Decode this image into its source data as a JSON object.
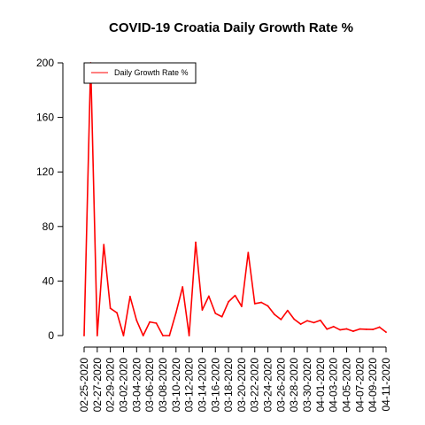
{
  "chart_data": {
    "type": "line",
    "title": "COVID-19 Croatia Daily Growth Rate %",
    "xlabel": "",
    "ylabel": "",
    "ylim": [
      0,
      200
    ],
    "yticks": [
      0,
      40,
      80,
      120,
      160,
      200
    ],
    "x": [
      "02-25-2020",
      "02-26-2020",
      "02-27-2020",
      "02-28-2020",
      "02-29-2020",
      "03-01-2020",
      "03-02-2020",
      "03-03-2020",
      "03-04-2020",
      "03-05-2020",
      "03-06-2020",
      "03-07-2020",
      "03-08-2020",
      "03-09-2020",
      "03-10-2020",
      "03-11-2020",
      "03-12-2020",
      "03-13-2020",
      "03-14-2020",
      "03-15-2020",
      "03-16-2020",
      "03-17-2020",
      "03-18-2020",
      "03-19-2020",
      "03-20-2020",
      "03-21-2020",
      "03-22-2020",
      "03-23-2020",
      "03-24-2020",
      "03-25-2020",
      "03-26-2020",
      "03-27-2020",
      "03-28-2020",
      "03-29-2020",
      "03-30-2020",
      "03-31-2020",
      "04-01-2020",
      "04-02-2020",
      "04-03-2020",
      "04-04-2020",
      "04-05-2020",
      "04-06-2020",
      "04-07-2020",
      "04-08-2020",
      "04-09-2020",
      "04-10-2020",
      "04-11-2020"
    ],
    "x_tick_labels": [
      "02-25-2020",
      "02-27-2020",
      "02-29-2020",
      "03-02-2020",
      "03-04-2020",
      "03-06-2020",
      "03-08-2020",
      "03-10-2020",
      "03-12-2020",
      "03-14-2020",
      "03-16-2020",
      "03-18-2020",
      "03-20-2020",
      "03-22-2020",
      "03-24-2020",
      "03-26-2020",
      "03-28-2020",
      "03-30-2020",
      "04-01-2020",
      "04-03-2020",
      "04-05-2020",
      "04-07-2020",
      "04-09-2020",
      "04-11-2020"
    ],
    "legend_position": "top-left",
    "series": [
      {
        "name": "Daily Growth Rate %",
        "color": "#ff0000",
        "values": [
          0,
          200,
          0,
          66.7,
          20,
          16.7,
          0,
          28.6,
          11.1,
          0,
          10,
          9.1,
          0,
          0,
          16.7,
          35.7,
          0,
          68.4,
          18.8,
          28.9,
          16.3,
          13.8,
          24.8,
          29.4,
          21.4,
          60.9,
          23.4,
          24.3,
          21.7,
          15.5,
          11.8,
          18.4,
          12,
          8.4,
          10.9,
          9.5,
          11.2,
          4.7,
          6.6,
          4.2,
          4.9,
          3.2,
          4.8,
          4.6,
          4.5,
          6.2,
          2.5
        ]
      }
    ]
  }
}
